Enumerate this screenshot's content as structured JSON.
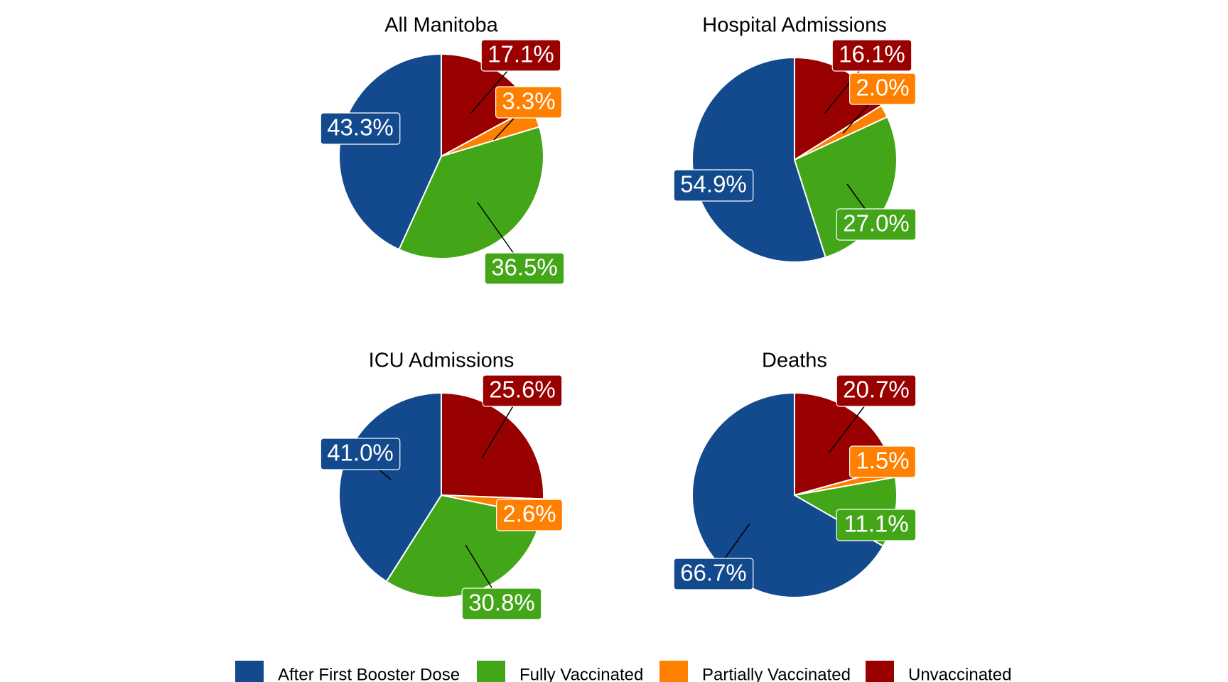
{
  "chart_data": {
    "type": "pie",
    "categories": [
      "After First Booster Dose",
      "Fully Vaccinated",
      "Partially Vaccinated",
      "Unvaccinated"
    ],
    "colors": {
      "After First Booster Dose": "#134a8e",
      "Fully Vaccinated": "#43a618",
      "Partially Vaccinated": "#ff8000",
      "Unvaccinated": "#990000"
    },
    "legend_position": "bottom",
    "charts": [
      {
        "title": "All Manitoba",
        "values": {
          "Unvaccinated": 17.1,
          "Partially Vaccinated": 3.3,
          "Fully Vaccinated": 36.5,
          "After First Booster Dose": 43.3
        },
        "labels": {
          "Unvaccinated": "17.1%",
          "Partially Vaccinated": "3.3%",
          "Fully Vaccinated": "36.5%",
          "After First Booster Dose": "43.3%"
        }
      },
      {
        "title": "Hospital Admissions",
        "values": {
          "Unvaccinated": 16.1,
          "Partially Vaccinated": 2.0,
          "Fully Vaccinated": 27.0,
          "After First Booster Dose": 54.9
        },
        "labels": {
          "Unvaccinated": "16.1%",
          "Partially Vaccinated": "2.0%",
          "Fully Vaccinated": "27.0%",
          "After First Booster Dose": "54.9%"
        }
      },
      {
        "title": "ICU Admissions",
        "values": {
          "Unvaccinated": 25.6,
          "Partially Vaccinated": 2.6,
          "Fully Vaccinated": 30.8,
          "After First Booster Dose": 41.0
        },
        "labels": {
          "Unvaccinated": "25.6%",
          "Partially Vaccinated": "2.6%",
          "Fully Vaccinated": "30.8%",
          "After First Booster Dose": "41.0%"
        }
      },
      {
        "title": "Deaths",
        "values": {
          "Unvaccinated": 20.7,
          "Partially Vaccinated": 1.5,
          "Fully Vaccinated": 11.1,
          "After First Booster Dose": 66.7
        },
        "labels": {
          "Unvaccinated": "20.7%",
          "Partially Vaccinated": "1.5%",
          "Fully Vaccinated": "11.1%",
          "After First Booster Dose": "66.7%"
        }
      }
    ]
  }
}
